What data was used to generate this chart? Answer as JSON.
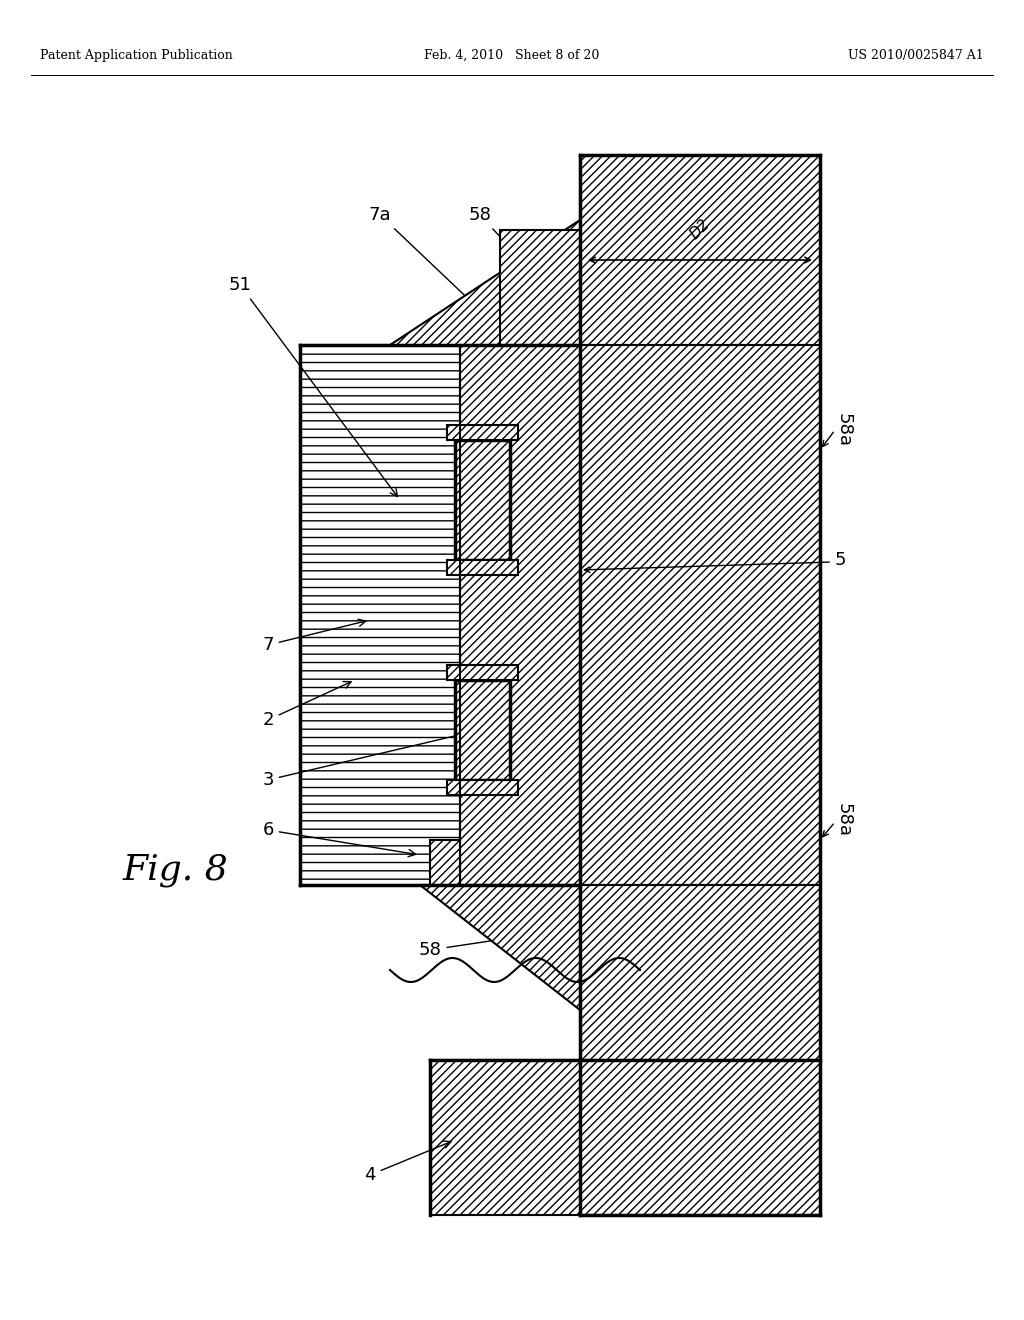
{
  "header_left": "Patent Application Publication",
  "header_center": "Feb. 4, 2010   Sheet 8 of 20",
  "header_right": "US 2010/0025847 A1",
  "fig_label": "Fig. 8",
  "background_color": "#ffffff"
}
